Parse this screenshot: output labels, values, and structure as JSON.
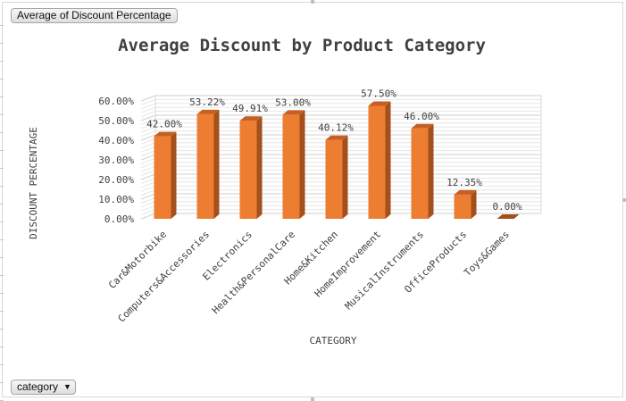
{
  "pivot": {
    "value_field_label": "Average of Discount Percentage",
    "axis_field_label": "category"
  },
  "icons": {
    "dropdown": "dropdown-arrow-icon"
  },
  "colors": {
    "bar_front": "#ed7d31",
    "bar_side": "#a4501c",
    "bar_top": "#c65f22",
    "title": "#404040",
    "axis_text": "#404040",
    "gridline": "#d9d9d9"
  },
  "chart_data": {
    "type": "bar",
    "title": "Average Discount by Product Category",
    "xlabel": "CATEGORY",
    "ylabel": "DISCOUNT PERCENTAGE",
    "ylim": [
      0,
      0.6
    ],
    "yticks": [
      "0.00%",
      "10.00%",
      "20.00%",
      "30.00%",
      "40.00%",
      "50.00%",
      "60.00%"
    ],
    "categories": [
      "Car&Motorbike",
      "Computers&Accessories",
      "Electronics",
      "Health&PersonalCare",
      "Home&Kitchen",
      "HomeImprovement",
      "MusicalInstruments",
      "OfficeProducts",
      "Toys&Games"
    ],
    "values": [
      0.42,
      0.5322,
      0.4991,
      0.53,
      0.4012,
      0.575,
      0.46,
      0.1235,
      0.0
    ],
    "data_labels": [
      "42.00%",
      "53.22%",
      "49.91%",
      "53.00%",
      "40.12%",
      "57.50%",
      "46.00%",
      "12.35%",
      "0.00%"
    ],
    "grid": true,
    "legend": "none",
    "style": "3d-column"
  }
}
